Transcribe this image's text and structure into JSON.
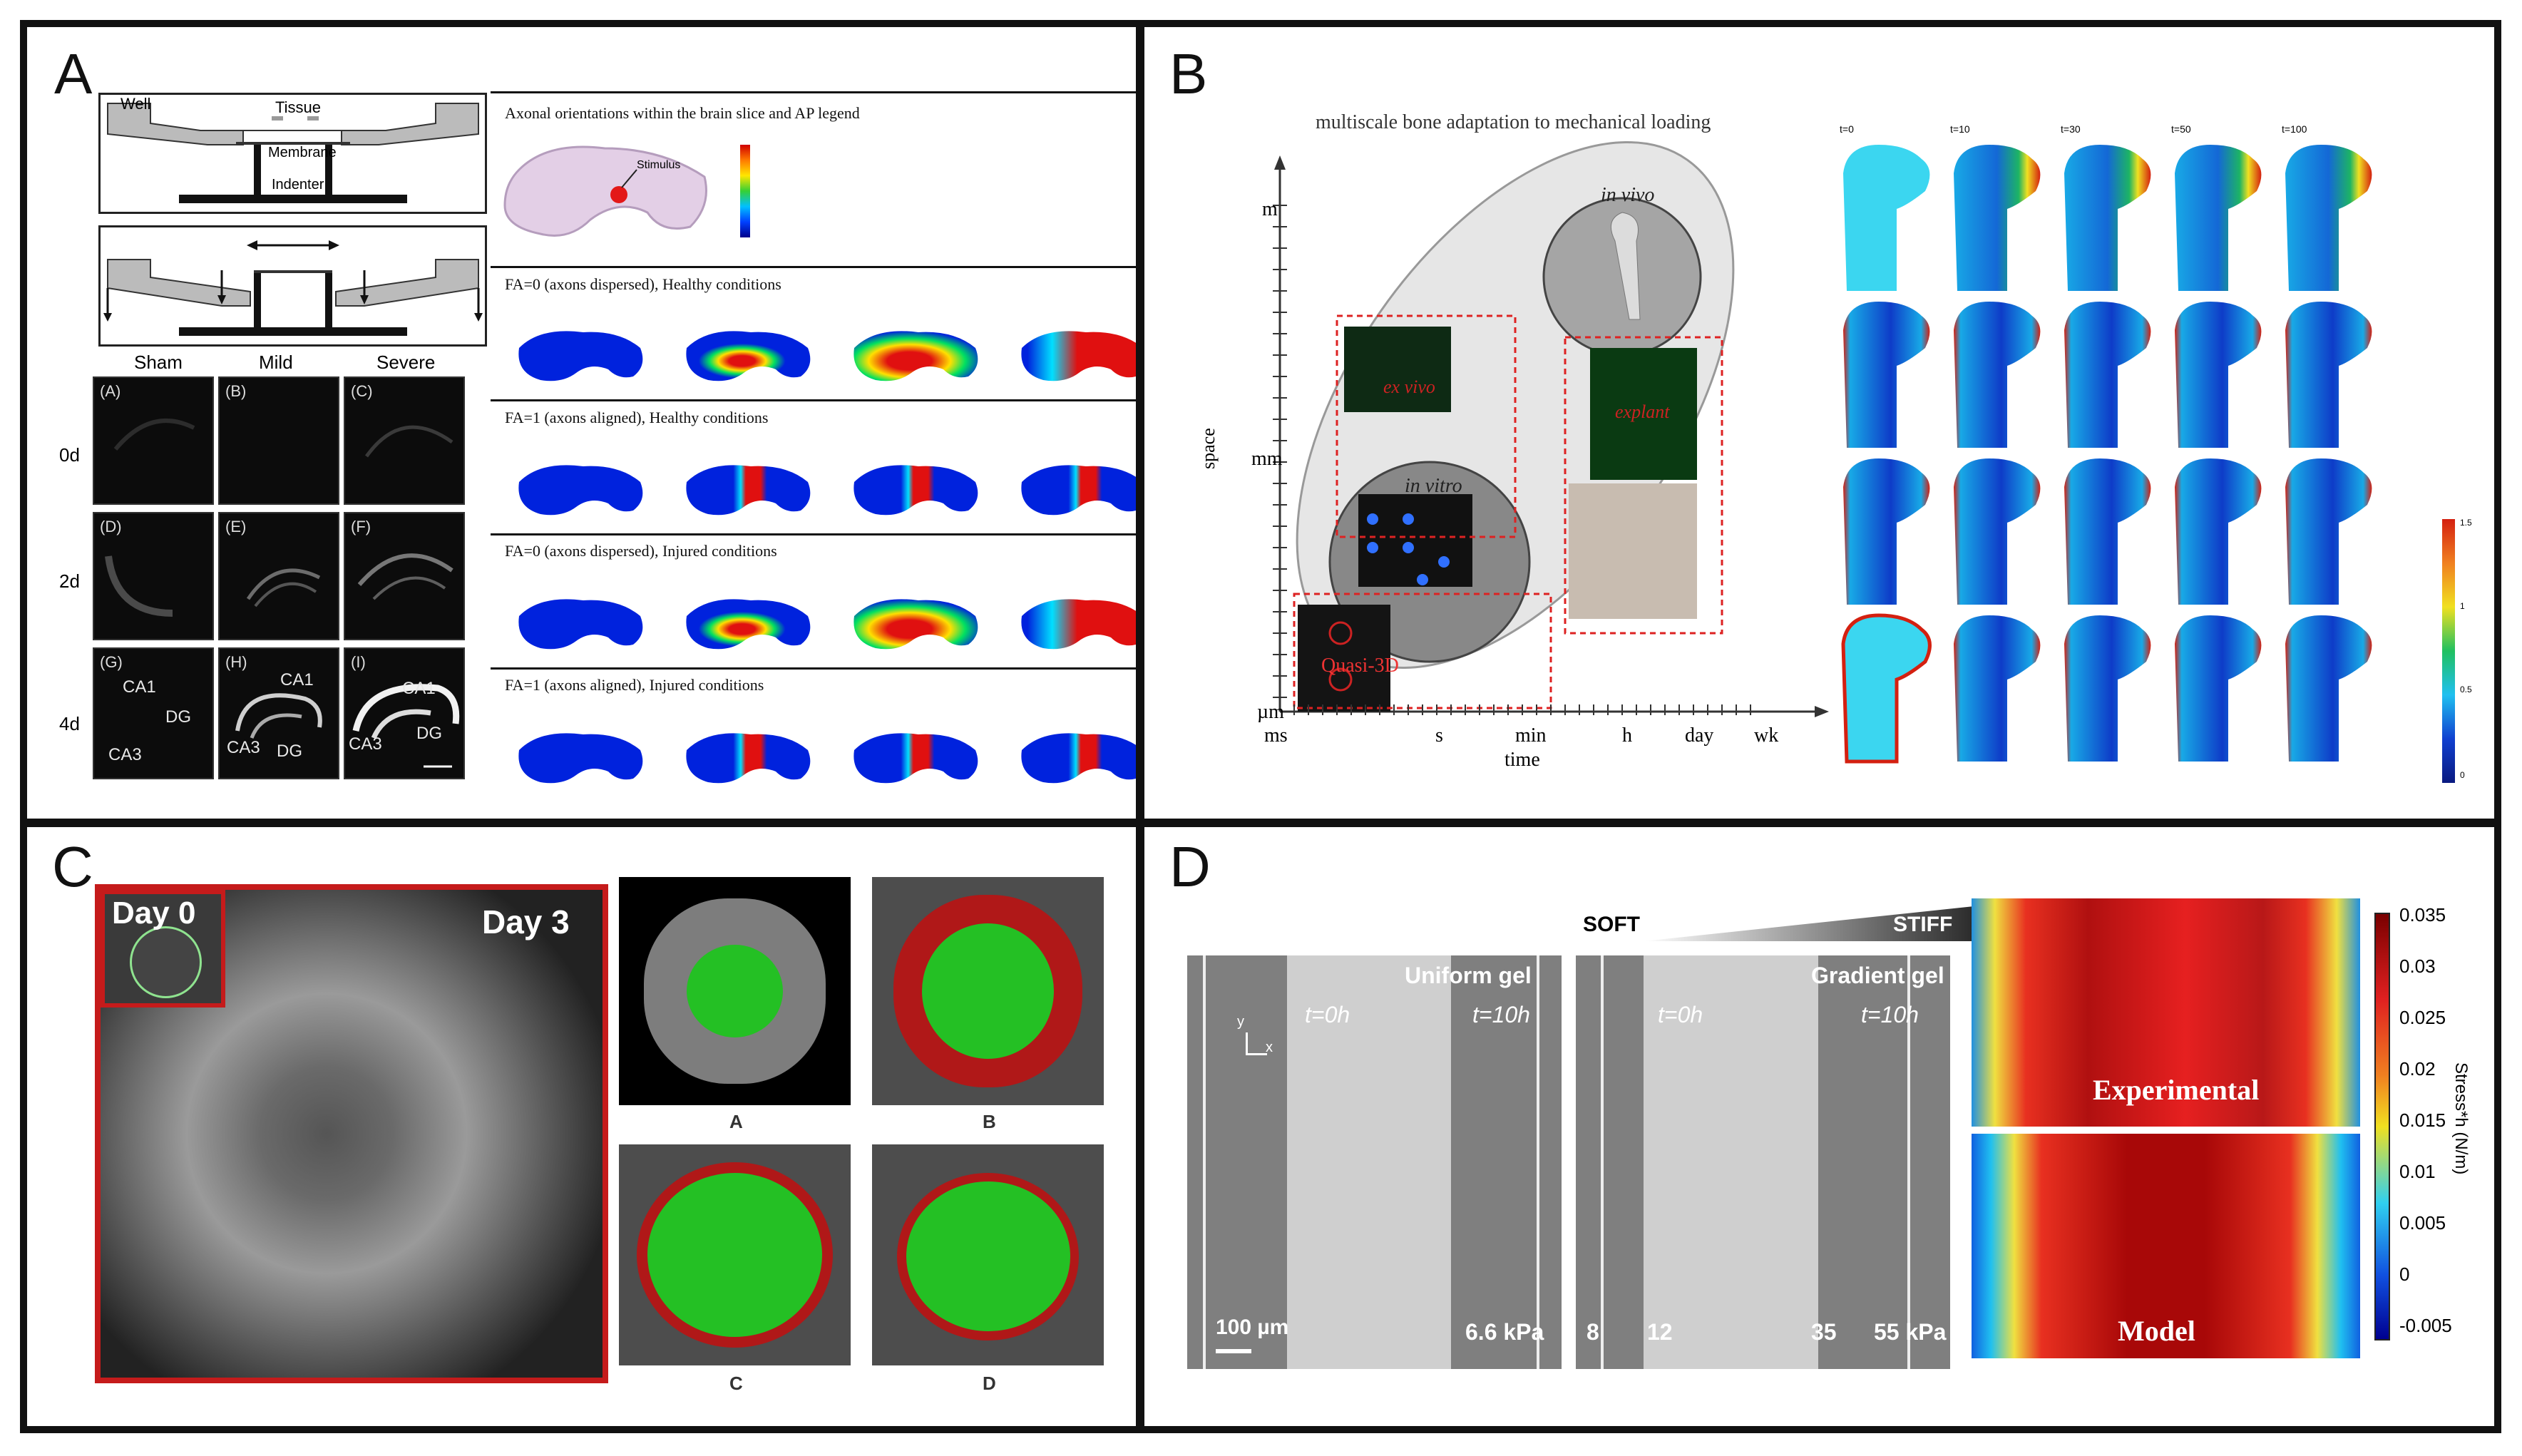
{
  "panels": {
    "a": {
      "letter": "A",
      "schematic": {
        "well": "Well",
        "tissue": "Tissue",
        "membrane": "Membrane",
        "indenter": "Indenter"
      },
      "columns": [
        "Sham",
        "Mild",
        "Severe"
      ],
      "rows": [
        "0d",
        "2d",
        "4d"
      ],
      "cell_tags": [
        "(A)",
        "(B)",
        "(C)",
        "(D)",
        "(E)",
        "(F)",
        "(G)",
        "(H)",
        "(I)"
      ],
      "region_labels": {
        "ca1": "CA1",
        "dg": "DG",
        "ca3": "CA3"
      },
      "legend_title": "Axonal orientations within the brain slice and AP legend",
      "stimulus": "Stimulus",
      "sim_rows": [
        "FA=0 (axons dispersed), Healthy conditions",
        "FA=1 (axons aligned), Healthy conditions",
        "FA=0 (axons dispersed), Injured conditions",
        "FA=1 (axons aligned), Injured conditions"
      ]
    },
    "b": {
      "letter": "B",
      "title": "multiscale bone adaptation to mechanical loading",
      "y_axis_label": "space",
      "y_ticks": [
        "m",
        "mm",
        "µm"
      ],
      "x_axis_label": "time",
      "x_ticks": [
        "ms",
        "s",
        "min",
        "h",
        "day",
        "wk"
      ],
      "scales": {
        "in_vivo": "in vivo",
        "ex_vivo": "ex vivo",
        "explant": "explant",
        "in_vitro": "in vitro",
        "quasi": "Quasi-3D"
      },
      "femur_times": [
        "t=0",
        "t=10",
        "t=30",
        "t=50",
        "t=100"
      ],
      "colorbar_ticks": [
        "1.5",
        "1",
        "0.5",
        "0"
      ]
    },
    "c": {
      "letter": "C",
      "day0": "Day 0",
      "day3": "Day 3",
      "sub_labels": [
        "A",
        "B",
        "C",
        "D"
      ]
    },
    "d": {
      "letter": "D",
      "soft": "SOFT",
      "stiff": "STIFF",
      "uniform_title": "Uniform gel",
      "gradient_title": "Gradient gel",
      "t0": "t=0h",
      "t10": "t=10h",
      "axis_y": "y",
      "axis_x": "x",
      "scale_bar": "100 µm",
      "uniform_stiffness": "6.6 kPa",
      "gradient_ticks": [
        "8",
        "12",
        "35",
        "55 kPa"
      ],
      "experimental": "Experimental",
      "model": "Model",
      "colorbar_label": "Stress*h (N/m)",
      "colorbar_ticks": [
        "0.035",
        "0.03",
        "0.025",
        "0.02",
        "0.015",
        "0.01",
        "0.005",
        "0",
        "-0.005"
      ]
    }
  }
}
